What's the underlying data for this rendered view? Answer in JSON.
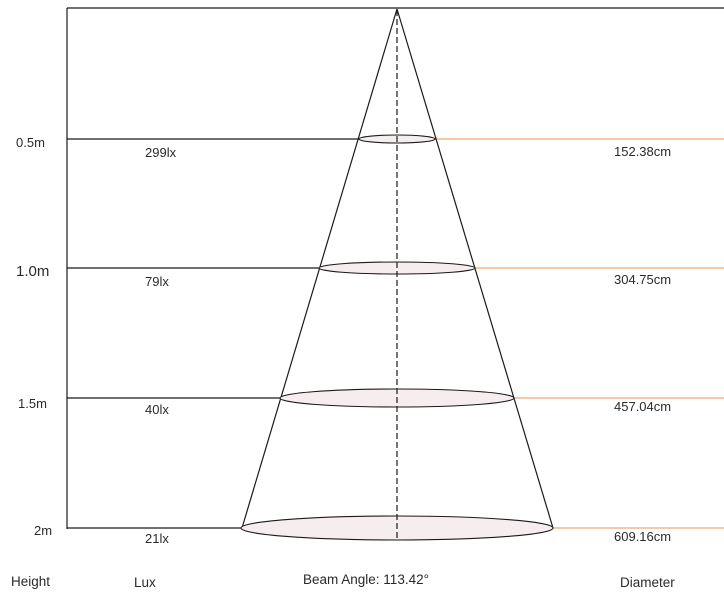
{
  "levels": [
    {
      "height": "0.5m",
      "lux": "299lx",
      "diameter": "152.38cm"
    },
    {
      "height": "1.0m",
      "lux": "79lx",
      "diameter": "304.75cm"
    },
    {
      "height": "1.5m",
      "lux": "40lx",
      "diameter": "457.04cm"
    },
    {
      "height": "2m",
      "lux": "21lx",
      "diameter": "609.16cm"
    }
  ],
  "footer": {
    "height_label": "Height",
    "lux_label": "Lux",
    "beam_angle": "Beam Angle: 113.42°",
    "diameter_label": "Diameter"
  },
  "colors": {
    "line": "#1a1a1a",
    "diameter_line": "#f0a878",
    "ellipse_fill": "#f6eeee"
  }
}
